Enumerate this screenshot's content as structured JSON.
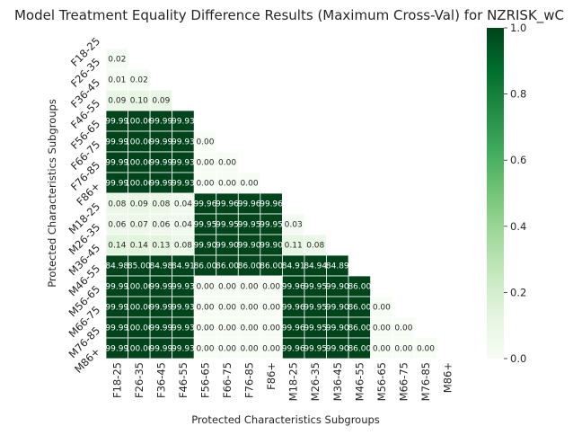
{
  "chart_data": {
    "type": "heatmap",
    "title": "Model Treatment Equality Difference Results (Maximum Cross-Val) for NZRISK_wC",
    "xlabel": "Protected Characteristics Subgroups",
    "ylabel": "Protected Characteristics Subgroups",
    "categories": [
      "F18-25",
      "F26-35",
      "F36-45",
      "F46-55",
      "F56-65",
      "F66-75",
      "F76-85",
      "F86+",
      "M18-25",
      "M26-35",
      "M36-45",
      "M46-55",
      "M56-65",
      "M66-75",
      "M76-85",
      "M86+"
    ],
    "mask": "upper-triangle including diagonal",
    "colormap": "Greens",
    "vmin": 0,
    "vmax": 1,
    "colorbar_ticks": [
      "0.0",
      "0.2",
      "0.4",
      "0.6",
      "0.8",
      "1.0"
    ],
    "matrix": [
      [
        null,
        null,
        null,
        null,
        null,
        null,
        null,
        null,
        null,
        null,
        null,
        null,
        null,
        null,
        null,
        null
      ],
      [
        "0.02",
        null,
        null,
        null,
        null,
        null,
        null,
        null,
        null,
        null,
        null,
        null,
        null,
        null,
        null,
        null
      ],
      [
        "0.01",
        "0.02",
        null,
        null,
        null,
        null,
        null,
        null,
        null,
        null,
        null,
        null,
        null,
        null,
        null,
        null
      ],
      [
        "0.09",
        "0.10",
        "0.09",
        null,
        null,
        null,
        null,
        null,
        null,
        null,
        null,
        null,
        null,
        null,
        null,
        null
      ],
      [
        "99.99",
        "100.00",
        "99.99",
        "99.93",
        null,
        null,
        null,
        null,
        null,
        null,
        null,
        null,
        null,
        null,
        null,
        null
      ],
      [
        "99.99",
        "100.00",
        "99.99",
        "99.93",
        "0.00",
        null,
        null,
        null,
        null,
        null,
        null,
        null,
        null,
        null,
        null,
        null
      ],
      [
        "99.99",
        "100.00",
        "99.99",
        "99.93",
        "0.00",
        "0.00",
        null,
        null,
        null,
        null,
        null,
        null,
        null,
        null,
        null,
        null
      ],
      [
        "99.99",
        "100.00",
        "99.99",
        "99.93",
        "0.00",
        "0.00",
        "0.00",
        null,
        null,
        null,
        null,
        null,
        null,
        null,
        null,
        null
      ],
      [
        "0.08",
        "0.09",
        "0.08",
        "0.04",
        "99.96",
        "99.96",
        "99.96",
        "99.96",
        null,
        null,
        null,
        null,
        null,
        null,
        null,
        null
      ],
      [
        "0.06",
        "0.07",
        "0.06",
        "0.04",
        "99.95",
        "99.95",
        "99.95",
        "99.95",
        "0.03",
        null,
        null,
        null,
        null,
        null,
        null,
        null
      ],
      [
        "0.14",
        "0.14",
        "0.13",
        "0.08",
        "99.90",
        "99.90",
        "99.90",
        "99.90",
        "0.11",
        "0.08",
        null,
        null,
        null,
        null,
        null,
        null
      ],
      [
        "84.98",
        "85.00",
        "84.98",
        "84.91",
        "86.00",
        "86.00",
        "86.00",
        "86.00",
        "84.91",
        "84.94",
        "84.89",
        null,
        null,
        null,
        null,
        null
      ],
      [
        "99.99",
        "100.00",
        "99.99",
        "99.93",
        "0.00",
        "0.00",
        "0.00",
        "0.00",
        "99.96",
        "99.95",
        "99.90",
        "86.00",
        null,
        null,
        null,
        null
      ],
      [
        "99.99",
        "100.00",
        "99.99",
        "99.93",
        "0.00",
        "0.00",
        "0.00",
        "0.00",
        "99.96",
        "99.95",
        "99.90",
        "86.00",
        "0.00",
        null,
        null,
        null
      ],
      [
        "99.99",
        "100.00",
        "99.99",
        "99.93",
        "0.00",
        "0.00",
        "0.00",
        "0.00",
        "99.96",
        "99.95",
        "99.90",
        "86.00",
        "0.00",
        "0.00",
        null,
        null
      ],
      [
        "99.99",
        "100.00",
        "99.99",
        "99.93",
        "0.00",
        "0.00",
        "0.00",
        "0.00",
        "99.96",
        "99.95",
        "99.90",
        "86.00",
        "0.00",
        "0.00",
        "0.00",
        null
      ]
    ]
  }
}
